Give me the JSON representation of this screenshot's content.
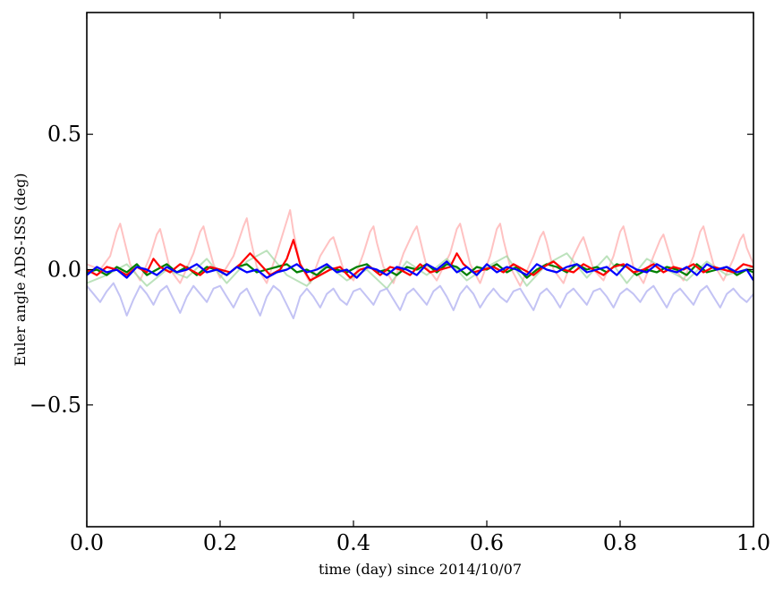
{
  "chart_data": {
    "type": "line",
    "xlabel": "time (day) since 2014/10/07",
    "ylabel": "Euler angle ADS-ISS (deg)",
    "xlim": [
      0.0,
      1.0
    ],
    "ylim": [
      -0.95,
      0.95
    ],
    "x_ticks": [
      0.0,
      0.2,
      0.4,
      0.6,
      0.8,
      1.0
    ],
    "x_tick_labels": [
      "0.0",
      "0.2",
      "0.4",
      "0.6",
      "0.8",
      "1.0"
    ],
    "y_ticks": [
      0.5,
      0.0,
      -0.5
    ],
    "y_tick_labels": [
      "0.5",
      "0.0",
      "−0.5"
    ],
    "grid": false,
    "series": [
      {
        "color": "#ff9a9a",
        "opacity": 0.6,
        "x": [
          0.0,
          0.02,
          0.035,
          0.045,
          0.05,
          0.055,
          0.065,
          0.08,
          0.095,
          0.105,
          0.11,
          0.115,
          0.125,
          0.14,
          0.16,
          0.17,
          0.175,
          0.18,
          0.19,
          0.2,
          0.22,
          0.235,
          0.24,
          0.245,
          0.255,
          0.27,
          0.285,
          0.3,
          0.305,
          0.31,
          0.32,
          0.335,
          0.35,
          0.365,
          0.37,
          0.375,
          0.385,
          0.4,
          0.415,
          0.425,
          0.43,
          0.435,
          0.445,
          0.46,
          0.475,
          0.49,
          0.495,
          0.5,
          0.51,
          0.525,
          0.545,
          0.555,
          0.56,
          0.565,
          0.575,
          0.59,
          0.605,
          0.615,
          0.62,
          0.625,
          0.635,
          0.65,
          0.67,
          0.68,
          0.685,
          0.69,
          0.7,
          0.715,
          0.73,
          0.74,
          0.745,
          0.75,
          0.76,
          0.775,
          0.79,
          0.8,
          0.805,
          0.81,
          0.82,
          0.835,
          0.85,
          0.86,
          0.865,
          0.87,
          0.88,
          0.895,
          0.91,
          0.92,
          0.925,
          0.93,
          0.94,
          0.955,
          0.97,
          0.98,
          0.985,
          0.99,
          1.0
        ],
        "y": [
          0.02,
          0.0,
          0.05,
          0.14,
          0.17,
          0.12,
          0.02,
          -0.04,
          0.05,
          0.13,
          0.15,
          0.1,
          0.0,
          -0.05,
          0.06,
          0.14,
          0.16,
          0.11,
          0.02,
          -0.03,
          0.05,
          0.16,
          0.19,
          0.12,
          0.01,
          -0.05,
          0.06,
          0.18,
          0.22,
          0.14,
          0.02,
          -0.05,
          0.05,
          0.11,
          0.12,
          0.08,
          0.0,
          -0.04,
          0.06,
          0.14,
          0.16,
          0.1,
          0.01,
          -0.05,
          0.06,
          0.14,
          0.16,
          0.11,
          0.01,
          -0.04,
          0.06,
          0.15,
          0.17,
          0.12,
          0.02,
          -0.05,
          0.05,
          0.15,
          0.17,
          0.11,
          0.01,
          -0.06,
          0.05,
          0.12,
          0.14,
          0.1,
          0.0,
          -0.05,
          0.05,
          0.1,
          0.12,
          0.08,
          0.0,
          -0.04,
          0.05,
          0.14,
          0.16,
          0.11,
          0.01,
          -0.05,
          0.05,
          0.11,
          0.13,
          0.09,
          0.01,
          -0.04,
          0.05,
          0.14,
          0.16,
          0.11,
          0.02,
          -0.04,
          0.04,
          0.11,
          0.13,
          0.08,
          0.02
        ]
      },
      {
        "color": "#9fd69f",
        "opacity": 0.7,
        "x": [
          0.0,
          0.03,
          0.06,
          0.09,
          0.12,
          0.15,
          0.18,
          0.21,
          0.24,
          0.27,
          0.3,
          0.33,
          0.36,
          0.39,
          0.42,
          0.45,
          0.48,
          0.51,
          0.54,
          0.57,
          0.6,
          0.63,
          0.66,
          0.69,
          0.72,
          0.75,
          0.78,
          0.81,
          0.84,
          0.87,
          0.9,
          0.93,
          0.96,
          1.0
        ],
        "y": [
          -0.05,
          -0.02,
          0.02,
          -0.06,
          0.0,
          -0.03,
          0.04,
          -0.05,
          0.03,
          0.07,
          -0.02,
          -0.06,
          0.02,
          -0.04,
          0.0,
          -0.07,
          0.03,
          -0.02,
          0.04,
          -0.04,
          0.01,
          0.05,
          -0.06,
          0.02,
          0.06,
          -0.03,
          0.05,
          -0.05,
          0.04,
          0.0,
          -0.04,
          0.03,
          -0.02,
          0.01
        ]
      },
      {
        "color": "#b8b8f2",
        "opacity": 0.85,
        "x": [
          0.0,
          0.01,
          0.02,
          0.03,
          0.04,
          0.05,
          0.06,
          0.07,
          0.08,
          0.09,
          0.1,
          0.11,
          0.12,
          0.13,
          0.14,
          0.15,
          0.16,
          0.17,
          0.18,
          0.19,
          0.2,
          0.21,
          0.22,
          0.23,
          0.24,
          0.25,
          0.26,
          0.27,
          0.28,
          0.29,
          0.3,
          0.31,
          0.32,
          0.33,
          0.34,
          0.35,
          0.36,
          0.37,
          0.38,
          0.39,
          0.4,
          0.41,
          0.42,
          0.43,
          0.44,
          0.45,
          0.46,
          0.47,
          0.48,
          0.49,
          0.5,
          0.51,
          0.52,
          0.53,
          0.54,
          0.55,
          0.56,
          0.57,
          0.58,
          0.59,
          0.6,
          0.61,
          0.62,
          0.63,
          0.64,
          0.65,
          0.66,
          0.67,
          0.68,
          0.69,
          0.7,
          0.71,
          0.72,
          0.73,
          0.74,
          0.75,
          0.76,
          0.77,
          0.78,
          0.79,
          0.8,
          0.81,
          0.82,
          0.83,
          0.84,
          0.85,
          0.86,
          0.87,
          0.88,
          0.89,
          0.9,
          0.91,
          0.92,
          0.93,
          0.94,
          0.95,
          0.96,
          0.97,
          0.98,
          0.99,
          1.0
        ],
        "y": [
          -0.06,
          -0.09,
          -0.12,
          -0.08,
          -0.05,
          -0.1,
          -0.17,
          -0.11,
          -0.06,
          -0.09,
          -0.13,
          -0.08,
          -0.06,
          -0.11,
          -0.16,
          -0.1,
          -0.06,
          -0.09,
          -0.12,
          -0.07,
          -0.06,
          -0.1,
          -0.14,
          -0.09,
          -0.07,
          -0.12,
          -0.17,
          -0.1,
          -0.06,
          -0.08,
          -0.13,
          -0.18,
          -0.1,
          -0.07,
          -0.1,
          -0.14,
          -0.09,
          -0.07,
          -0.11,
          -0.13,
          -0.08,
          -0.07,
          -0.1,
          -0.13,
          -0.08,
          -0.07,
          -0.11,
          -0.15,
          -0.09,
          -0.07,
          -0.1,
          -0.13,
          -0.08,
          -0.06,
          -0.1,
          -0.15,
          -0.09,
          -0.06,
          -0.09,
          -0.14,
          -0.1,
          -0.07,
          -0.1,
          -0.12,
          -0.08,
          -0.07,
          -0.11,
          -0.15,
          -0.09,
          -0.07,
          -0.1,
          -0.14,
          -0.09,
          -0.07,
          -0.1,
          -0.13,
          -0.08,
          -0.07,
          -0.1,
          -0.14,
          -0.09,
          -0.07,
          -0.09,
          -0.12,
          -0.08,
          -0.06,
          -0.1,
          -0.14,
          -0.09,
          -0.07,
          -0.1,
          -0.13,
          -0.08,
          -0.06,
          -0.1,
          -0.14,
          -0.09,
          -0.07,
          -0.1,
          -0.12,
          -0.09
        ]
      },
      {
        "color": "#008000",
        "opacity": 1,
        "x": [
          0.0,
          0.015,
          0.03,
          0.045,
          0.06,
          0.075,
          0.09,
          0.105,
          0.12,
          0.135,
          0.15,
          0.165,
          0.18,
          0.195,
          0.21,
          0.225,
          0.24,
          0.255,
          0.27,
          0.285,
          0.3,
          0.315,
          0.33,
          0.345,
          0.36,
          0.375,
          0.39,
          0.405,
          0.42,
          0.435,
          0.45,
          0.465,
          0.48,
          0.495,
          0.51,
          0.525,
          0.54,
          0.555,
          0.57,
          0.585,
          0.6,
          0.615,
          0.63,
          0.645,
          0.66,
          0.675,
          0.69,
          0.705,
          0.72,
          0.735,
          0.75,
          0.765,
          0.78,
          0.795,
          0.81,
          0.825,
          0.84,
          0.855,
          0.87,
          0.885,
          0.9,
          0.915,
          0.93,
          0.945,
          0.96,
          0.975,
          0.99,
          1.0
        ],
        "y": [
          -0.01,
          0.0,
          -0.02,
          0.01,
          -0.01,
          0.02,
          -0.02,
          0.0,
          0.02,
          -0.01,
          0.01,
          -0.02,
          0.01,
          0.0,
          -0.02,
          0.01,
          0.02,
          -0.01,
          0.0,
          0.01,
          0.02,
          -0.01,
          0.0,
          -0.02,
          0.01,
          0.0,
          -0.01,
          0.01,
          0.02,
          -0.01,
          0.0,
          -0.02,
          0.01,
          0.0,
          0.02,
          -0.01,
          0.02,
          0.01,
          -0.02,
          0.01,
          0.0,
          0.02,
          -0.01,
          0.01,
          -0.03,
          0.0,
          0.02,
          0.01,
          -0.01,
          0.02,
          0.0,
          0.01,
          -0.01,
          0.02,
          0.01,
          -0.02,
          0.0,
          -0.01,
          0.01,
          0.0,
          -0.02,
          0.02,
          -0.01,
          0.0,
          0.01,
          -0.02,
          0.0,
          -0.01
        ]
      },
      {
        "color": "#ff0000",
        "opacity": 1,
        "x": [
          0.0,
          0.015,
          0.03,
          0.045,
          0.06,
          0.075,
          0.09,
          0.1,
          0.11,
          0.125,
          0.14,
          0.155,
          0.17,
          0.185,
          0.2,
          0.215,
          0.23,
          0.245,
          0.26,
          0.275,
          0.29,
          0.3,
          0.31,
          0.32,
          0.335,
          0.35,
          0.365,
          0.38,
          0.395,
          0.41,
          0.425,
          0.44,
          0.455,
          0.47,
          0.485,
          0.5,
          0.515,
          0.53,
          0.545,
          0.555,
          0.565,
          0.58,
          0.595,
          0.61,
          0.625,
          0.64,
          0.655,
          0.67,
          0.685,
          0.7,
          0.715,
          0.73,
          0.745,
          0.76,
          0.775,
          0.79,
          0.805,
          0.82,
          0.835,
          0.85,
          0.865,
          0.88,
          0.895,
          0.91,
          0.925,
          0.94,
          0.955,
          0.97,
          0.985,
          1.0
        ],
        "y": [
          0.0,
          -0.02,
          0.01,
          0.0,
          -0.02,
          0.01,
          -0.01,
          0.04,
          0.01,
          -0.01,
          0.02,
          0.0,
          -0.02,
          0.01,
          0.0,
          -0.01,
          0.02,
          0.06,
          0.02,
          -0.02,
          0.0,
          0.04,
          0.11,
          0.02,
          -0.04,
          -0.02,
          0.0,
          0.01,
          -0.03,
          0.0,
          0.01,
          -0.02,
          0.01,
          0.0,
          -0.02,
          0.02,
          -0.01,
          0.0,
          0.01,
          0.06,
          0.02,
          -0.01,
          0.0,
          0.01,
          -0.01,
          0.02,
          0.0,
          -0.02,
          0.01,
          0.03,
          0.0,
          -0.01,
          0.02,
          0.0,
          -0.02,
          0.01,
          0.02,
          -0.01,
          0.0,
          0.02,
          -0.01,
          0.01,
          0.0,
          0.02,
          -0.01,
          0.01,
          0.0,
          -0.01,
          0.02,
          0.01
        ]
      },
      {
        "color": "#0000ff",
        "opacity": 1,
        "x": [
          0.0,
          0.015,
          0.03,
          0.045,
          0.06,
          0.075,
          0.09,
          0.105,
          0.12,
          0.135,
          0.15,
          0.165,
          0.18,
          0.195,
          0.21,
          0.225,
          0.24,
          0.255,
          0.27,
          0.285,
          0.3,
          0.315,
          0.33,
          0.345,
          0.36,
          0.375,
          0.39,
          0.405,
          0.42,
          0.435,
          0.45,
          0.465,
          0.48,
          0.495,
          0.51,
          0.525,
          0.54,
          0.555,
          0.57,
          0.585,
          0.6,
          0.615,
          0.63,
          0.645,
          0.66,
          0.675,
          0.69,
          0.705,
          0.72,
          0.735,
          0.75,
          0.765,
          0.78,
          0.795,
          0.81,
          0.825,
          0.84,
          0.855,
          0.87,
          0.885,
          0.9,
          0.915,
          0.93,
          0.945,
          0.96,
          0.975,
          0.99,
          1.0
        ],
        "y": [
          -0.02,
          0.01,
          -0.01,
          0.0,
          -0.03,
          0.01,
          0.0,
          -0.02,
          0.01,
          -0.01,
          0.0,
          0.02,
          -0.01,
          0.0,
          -0.02,
          0.01,
          -0.01,
          0.0,
          -0.03,
          -0.01,
          0.0,
          0.02,
          -0.01,
          0.0,
          0.02,
          -0.01,
          0.0,
          -0.03,
          0.01,
          0.0,
          -0.02,
          0.01,
          0.0,
          -0.02,
          0.02,
          0.0,
          0.03,
          -0.01,
          0.01,
          -0.02,
          0.02,
          -0.01,
          0.01,
          0.0,
          -0.02,
          0.02,
          0.0,
          -0.01,
          0.01,
          0.02,
          -0.01,
          0.0,
          0.01,
          -0.02,
          0.02,
          0.0,
          -0.01,
          0.02,
          0.0,
          -0.01,
          0.01,
          -0.02,
          0.02,
          0.0,
          0.01,
          -0.01,
          0.0,
          -0.04
        ]
      }
    ]
  }
}
